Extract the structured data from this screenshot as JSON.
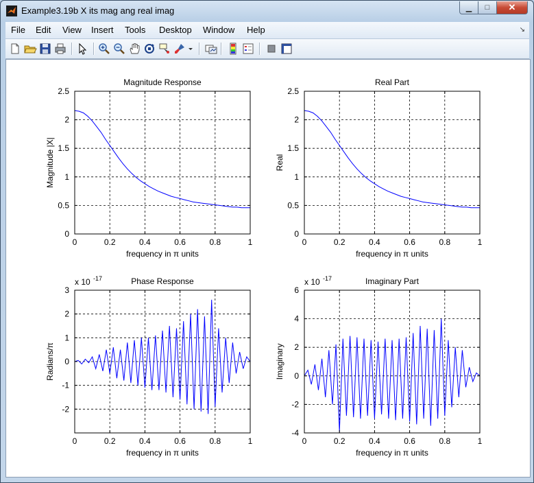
{
  "window": {
    "title": "Example3.19b X its mag ang real imag",
    "minimize": "▁",
    "maximize": "□",
    "close": "✕"
  },
  "menu": [
    "File",
    "Edit",
    "View",
    "Insert",
    "Tools",
    "Desktop",
    "Window",
    "Help"
  ],
  "menu_arrow": "↘",
  "toolbar": [
    "new-figure-icon",
    "open-file-icon",
    "save-icon",
    "print-icon",
    "edit-plot-arrow-icon",
    "zoom-in-icon",
    "zoom-out-icon",
    "pan-hand-icon",
    "rotate-3d-icon",
    "data-cursor-icon",
    "brush-icon",
    "brush-dropdown-icon",
    "link-plot-icon",
    "colorbar-icon",
    "legend-icon",
    "hide-plot-tools-icon",
    "show-plot-tools-icon"
  ],
  "colors": {
    "line": "#0000ff",
    "figure_bg": "#ffffff",
    "window_frame": "#bcd0e6"
  },
  "chart_data": [
    {
      "type": "line",
      "title": "Magnitude Response",
      "xlabel": "frequency in π units",
      "ylabel": "Magnitude  |X|",
      "xlim": [
        0,
        1
      ],
      "ylim": [
        0,
        2.5
      ],
      "xticks": [
        0,
        0.2,
        0.4,
        0.6,
        0.8,
        1
      ],
      "yticks": [
        0,
        0.5,
        1,
        1.5,
        2,
        2.5
      ],
      "xtick_labels": [
        "0",
        "0.2",
        "0.4",
        "0.6",
        "0.8",
        "1"
      ],
      "ytick_labels": [
        "0",
        "0.5",
        "1",
        "1.5",
        "2",
        "2.5"
      ],
      "grid": true,
      "exponent_label": "",
      "x": [
        0,
        0.025,
        0.05,
        0.075,
        0.1,
        0.125,
        0.15,
        0.175,
        0.2,
        0.225,
        0.25,
        0.275,
        0.3,
        0.325,
        0.35,
        0.375,
        0.4,
        0.425,
        0.45,
        0.475,
        0.5,
        0.525,
        0.55,
        0.575,
        0.6,
        0.625,
        0.65,
        0.675,
        0.7,
        0.725,
        0.75,
        0.775,
        0.8,
        0.825,
        0.85,
        0.875,
        0.9,
        0.925,
        0.95,
        0.975,
        1
      ],
      "y": [
        2.16,
        2.15,
        2.12,
        2.06,
        1.98,
        1.88,
        1.78,
        1.66,
        1.55,
        1.44,
        1.33,
        1.23,
        1.14,
        1.06,
        0.99,
        0.93,
        0.88,
        0.83,
        0.79,
        0.75,
        0.72,
        0.69,
        0.66,
        0.64,
        0.62,
        0.6,
        0.58,
        0.56,
        0.55,
        0.54,
        0.53,
        0.52,
        0.51,
        0.5,
        0.49,
        0.48,
        0.47,
        0.47,
        0.46,
        0.46,
        0.46
      ]
    },
    {
      "type": "line",
      "title": "Real Part",
      "xlabel": "frequency in π units",
      "ylabel": "Real",
      "xlim": [
        0,
        1
      ],
      "ylim": [
        0,
        2.5
      ],
      "xticks": [
        0,
        0.2,
        0.4,
        0.6,
        0.8,
        1
      ],
      "yticks": [
        0,
        0.5,
        1,
        1.5,
        2,
        2.5
      ],
      "xtick_labels": [
        "0",
        "0.2",
        "0.4",
        "0.6",
        "0.8",
        "1"
      ],
      "ytick_labels": [
        "0",
        "0.5",
        "1",
        "1.5",
        "2",
        "2.5"
      ],
      "grid": true,
      "exponent_label": "",
      "x": [
        0,
        0.025,
        0.05,
        0.075,
        0.1,
        0.125,
        0.15,
        0.175,
        0.2,
        0.225,
        0.25,
        0.275,
        0.3,
        0.325,
        0.35,
        0.375,
        0.4,
        0.425,
        0.45,
        0.475,
        0.5,
        0.525,
        0.55,
        0.575,
        0.6,
        0.625,
        0.65,
        0.675,
        0.7,
        0.725,
        0.75,
        0.775,
        0.8,
        0.825,
        0.85,
        0.875,
        0.9,
        0.925,
        0.95,
        0.975,
        1
      ],
      "y": [
        2.16,
        2.15,
        2.12,
        2.06,
        1.98,
        1.88,
        1.78,
        1.66,
        1.55,
        1.44,
        1.33,
        1.23,
        1.14,
        1.06,
        0.99,
        0.93,
        0.88,
        0.83,
        0.79,
        0.75,
        0.72,
        0.69,
        0.66,
        0.64,
        0.62,
        0.6,
        0.58,
        0.56,
        0.55,
        0.54,
        0.53,
        0.52,
        0.51,
        0.5,
        0.49,
        0.48,
        0.47,
        0.47,
        0.46,
        0.46,
        0.46
      ]
    },
    {
      "type": "line",
      "title": "Phase Response",
      "xlabel": "frequency in π units",
      "ylabel": "Radians/π",
      "xlim": [
        0,
        1
      ],
      "ylim": [
        -3,
        3
      ],
      "xticks": [
        0,
        0.2,
        0.4,
        0.6,
        0.8,
        1
      ],
      "yticks": [
        -2,
        -1,
        0,
        1,
        2,
        3
      ],
      "xtick_labels": [
        "0",
        "0.2",
        "0.4",
        "0.6",
        "0.8",
        "1"
      ],
      "ytick_labels": [
        "-2",
        "-1",
        "0",
        "1",
        "2",
        "3"
      ],
      "grid": true,
      "exponent_label": "x 10",
      "exponent_power": "-17",
      "x": [
        0,
        0.02,
        0.04,
        0.06,
        0.08,
        0.1,
        0.12,
        0.14,
        0.16,
        0.18,
        0.2,
        0.22,
        0.24,
        0.26,
        0.28,
        0.3,
        0.32,
        0.34,
        0.36,
        0.38,
        0.4,
        0.42,
        0.44,
        0.46,
        0.48,
        0.5,
        0.52,
        0.54,
        0.56,
        0.58,
        0.6,
        0.62,
        0.64,
        0.66,
        0.68,
        0.7,
        0.72,
        0.74,
        0.76,
        0.78,
        0.8,
        0.82,
        0.84,
        0.86,
        0.88,
        0.9,
        0.92,
        0.94,
        0.96,
        0.98,
        1
      ],
      "y": [
        0,
        0.05,
        -0.1,
        0.1,
        -0.05,
        0.2,
        -0.3,
        0.3,
        -0.4,
        0.5,
        -0.5,
        0.6,
        -0.7,
        0.5,
        -0.8,
        0.8,
        -0.9,
        0.9,
        -1.0,
        1.0,
        -1.1,
        1.0,
        -1.2,
        1.1,
        -1.2,
        1.3,
        -1.3,
        1.5,
        -1.5,
        1.4,
        -1.6,
        1.7,
        -1.8,
        2.0,
        -2.0,
        2.2,
        -2.1,
        1.9,
        -2.2,
        2.6,
        -1.9,
        1.4,
        -1.3,
        1.0,
        -0.9,
        0.8,
        -0.5,
        0.4,
        -0.3,
        0.2,
        0
      ]
    },
    {
      "type": "line",
      "title": "Imaginary Part",
      "xlabel": "frequency in π units",
      "ylabel": "Imaginary",
      "xlim": [
        0,
        1
      ],
      "ylim": [
        -4,
        6
      ],
      "xticks": [
        0,
        0.2,
        0.4,
        0.6,
        0.8,
        1
      ],
      "yticks": [
        -4,
        -2,
        0,
        2,
        4,
        6
      ],
      "xtick_labels": [
        "0",
        "0.2",
        "0.4",
        "0.6",
        "0.8",
        "1"
      ],
      "ytick_labels": [
        "-4",
        "-2",
        "0",
        "2",
        "4",
        "6"
      ],
      "grid": true,
      "exponent_label": "x 10",
      "exponent_power": "-17",
      "x": [
        0,
        0.02,
        0.04,
        0.06,
        0.08,
        0.1,
        0.12,
        0.14,
        0.16,
        0.18,
        0.2,
        0.22,
        0.24,
        0.26,
        0.28,
        0.3,
        0.32,
        0.34,
        0.36,
        0.38,
        0.4,
        0.42,
        0.44,
        0.46,
        0.48,
        0.5,
        0.52,
        0.54,
        0.56,
        0.58,
        0.6,
        0.62,
        0.64,
        0.66,
        0.68,
        0.7,
        0.72,
        0.74,
        0.76,
        0.78,
        0.8,
        0.82,
        0.84,
        0.86,
        0.88,
        0.9,
        0.92,
        0.94,
        0.96,
        0.98,
        1
      ],
      "y": [
        0,
        0.4,
        -0.6,
        0.8,
        -1.0,
        1.2,
        -1.5,
        1.8,
        -2.0,
        2.2,
        -3.9,
        2.6,
        -2.8,
        2.8,
        -2.9,
        2.7,
        -3.0,
        2.6,
        -2.8,
        2.5,
        -3.0,
        2.4,
        -2.7,
        2.6,
        -3.0,
        2.5,
        -3.1,
        2.6,
        -3.0,
        2.7,
        -3.2,
        3.0,
        -3.4,
        3.5,
        -3.0,
        3.3,
        -3.5,
        3.2,
        -3.0,
        4.0,
        -2.8,
        2.5,
        -2.2,
        2.0,
        -1.5,
        1.8,
        -0.8,
        0.6,
        -0.4,
        0.2,
        0
      ]
    }
  ]
}
